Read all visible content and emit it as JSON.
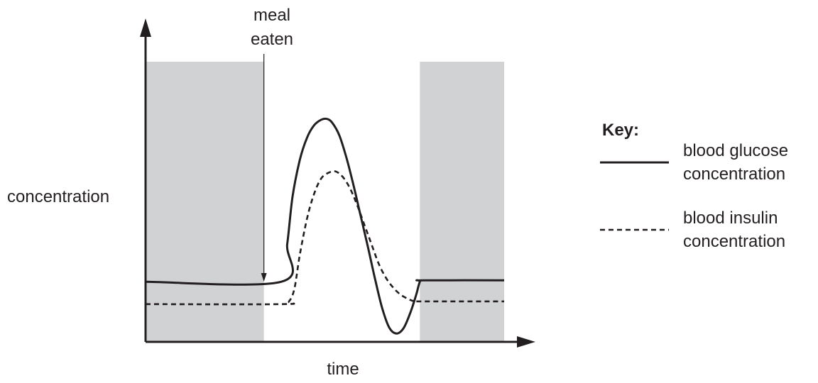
{
  "chart_data": {
    "type": "line",
    "title": "",
    "xlabel": "time",
    "ylabel": "concentration",
    "xlim": [
      0,
      100
    ],
    "ylim": [
      0,
      100
    ],
    "grid": false,
    "shaded_regions": [
      [
        0,
        33
      ],
      [
        76.5,
        100
      ]
    ],
    "annotation": {
      "text_lines": [
        "meal",
        "eaten"
      ],
      "x": 33
    },
    "legend": {
      "title": "Key:",
      "position": "right"
    },
    "series": [
      {
        "name": "blood glucose concentration",
        "line_style": "solid",
        "points": [
          [
            0,
            21.5
          ],
          [
            37.8,
            21.5
          ],
          [
            39.5,
            35
          ],
          [
            41,
            52
          ],
          [
            43,
            65
          ],
          [
            45,
            73
          ],
          [
            47,
            77.5
          ],
          [
            49,
            79.5
          ],
          [
            50.5,
            79.8
          ],
          [
            52,
            78.5
          ],
          [
            54,
            74
          ],
          [
            56,
            66
          ],
          [
            58,
            56
          ],
          [
            60,
            45
          ],
          [
            62,
            34
          ],
          [
            64,
            22.5
          ],
          [
            66,
            12
          ],
          [
            68,
            5
          ],
          [
            70,
            3
          ],
          [
            72,
            5
          ],
          [
            74,
            11
          ],
          [
            75.5,
            17
          ],
          [
            76.5,
            21.5
          ],
          [
            77.5,
            22
          ],
          [
            100,
            22
          ]
        ]
      },
      {
        "name": "blood insulin concentration",
        "line_style": "dashed",
        "points": [
          [
            0,
            13.5
          ],
          [
            38,
            13.5
          ],
          [
            40,
            14.5
          ],
          [
            41.5,
            19
          ],
          [
            43,
            31
          ],
          [
            45,
            44
          ],
          [
            47,
            53
          ],
          [
            49,
            58.5
          ],
          [
            51,
            60.5
          ],
          [
            53,
            61
          ],
          [
            55,
            59
          ],
          [
            57,
            55
          ],
          [
            59,
            49
          ],
          [
            61,
            42
          ],
          [
            63,
            35
          ],
          [
            65,
            28
          ],
          [
            67,
            23
          ],
          [
            69,
            19.5
          ],
          [
            71,
            17
          ],
          [
            73,
            15.5
          ],
          [
            75,
            14.5
          ],
          [
            77.5,
            14.5
          ],
          [
            100,
            14.5
          ]
        ]
      }
    ]
  },
  "legend_labels": {
    "glucose": [
      "blood glucose",
      "concentration"
    ],
    "insulin": [
      "blood insulin",
      "concentration"
    ]
  }
}
